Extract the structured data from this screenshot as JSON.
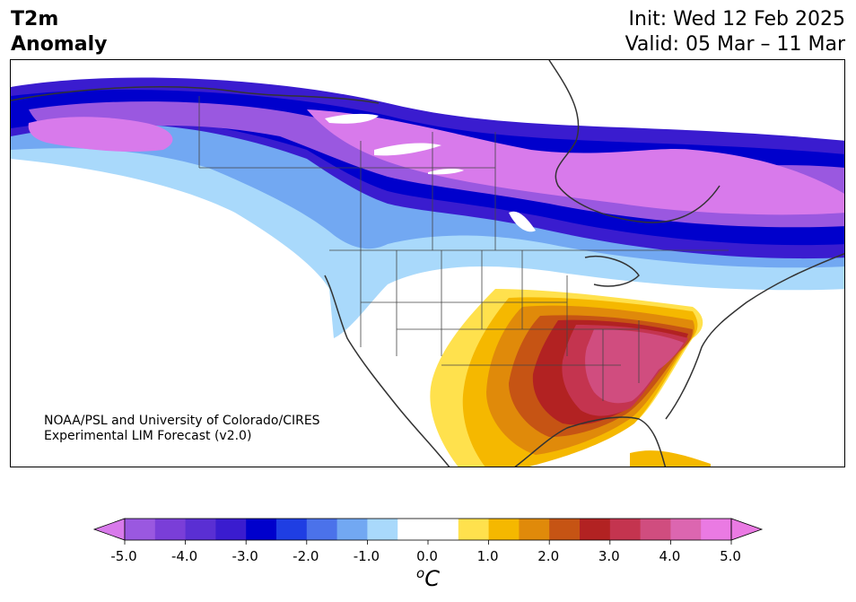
{
  "title_left": {
    "line1": "T2m",
    "line2": "Anomaly"
  },
  "title_right": {
    "line1": "Init: Wed 12 Feb 2025",
    "line2": "Valid: 05 Mar – 11 Mar"
  },
  "credit": {
    "line1": "NOAA/PSL and University of Colorado/CIRES",
    "line2": "Experimental LIM Forecast (v2.0)"
  },
  "colorbar": {
    "unit_sup": "o",
    "unit_main": "C",
    "ticks": [
      "-5.0",
      "-4.0",
      "-3.0",
      "-2.0",
      "-1.0",
      "0.0",
      "1.0",
      "2.0",
      "3.0",
      "4.0",
      "5.0"
    ],
    "tick_values": [
      -5,
      -4,
      -3,
      -2,
      -1,
      0,
      1,
      2,
      3,
      4,
      5
    ],
    "min": -5.0,
    "max": 5.0,
    "step": 0.5,
    "colors": [
      "#9a58e0",
      "#7a3ed8",
      "#5a2fd3",
      "#3a1ccf",
      "#0000cc",
      "#1f3ee3",
      "#4b72ea",
      "#72a8f2",
      "#a9d9fb",
      "#ffffff",
      "#ffffff",
      "#ffe14d",
      "#f5b800",
      "#e08a0a",
      "#c65414",
      "#b22222",
      "#c4344f",
      "#d04d7f",
      "#dc66b0",
      "#ea7ae3"
    ],
    "extend_low_color": "#d87aeb",
    "extend_high_color": "#ea7ae3"
  }
}
